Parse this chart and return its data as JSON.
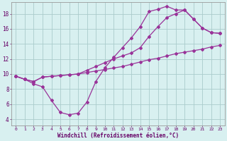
{
  "line1_x": [
    0,
    1,
    2,
    3,
    4,
    5,
    6,
    7,
    8,
    9,
    10,
    11,
    12,
    13,
    14,
    15,
    16,
    17,
    18,
    19,
    20,
    21,
    22,
    23
  ],
  "line1_y": [
    9.7,
    9.3,
    9.0,
    9.6,
    9.7,
    9.8,
    9.9,
    10.0,
    10.2,
    10.4,
    10.6,
    10.8,
    11.0,
    11.3,
    11.6,
    11.9,
    12.1,
    12.4,
    12.7,
    12.9,
    13.1,
    13.3,
    13.6,
    13.8
  ],
  "line2_x": [
    0,
    1,
    2,
    3,
    4,
    5,
    6,
    7,
    8,
    9,
    10,
    11,
    12,
    13,
    14,
    15,
    16,
    17,
    18,
    19,
    20,
    21,
    22,
    23
  ],
  "line2_y": [
    9.7,
    9.3,
    8.7,
    8.3,
    6.5,
    4.9,
    4.6,
    4.8,
    6.3,
    9.0,
    10.8,
    12.2,
    13.5,
    14.8,
    16.3,
    18.3,
    18.6,
    19.0,
    18.5,
    18.5,
    17.3,
    16.1,
    15.5,
    15.4
  ],
  "line3_x": [
    0,
    1,
    2,
    3,
    4,
    5,
    6,
    7,
    8,
    9,
    10,
    11,
    12,
    13,
    14,
    15,
    16,
    17,
    18,
    19,
    20,
    21,
    22,
    23
  ],
  "line3_y": [
    9.7,
    9.3,
    9.0,
    9.6,
    9.7,
    9.8,
    9.9,
    10.0,
    10.5,
    11.0,
    11.5,
    12.0,
    12.4,
    12.8,
    13.5,
    15.0,
    16.3,
    17.5,
    18.0,
    18.5,
    17.3,
    16.1,
    15.5,
    15.4
  ],
  "color": "#993399",
  "bg_color": "#d8f0f0",
  "grid_color": "#aacccc",
  "xlabel": "Windchill (Refroidissement éolien,°C)",
  "xlim": [
    -0.5,
    23.5
  ],
  "ylim": [
    3.2,
    19.5
  ],
  "xticks": [
    0,
    1,
    2,
    3,
    4,
    5,
    6,
    7,
    8,
    9,
    10,
    11,
    12,
    13,
    14,
    15,
    16,
    17,
    18,
    19,
    20,
    21,
    22,
    23
  ],
  "yticks": [
    4,
    6,
    8,
    10,
    12,
    14,
    16,
    18
  ],
  "marker": "D",
  "markersize": 2.0,
  "linewidth": 0.9
}
